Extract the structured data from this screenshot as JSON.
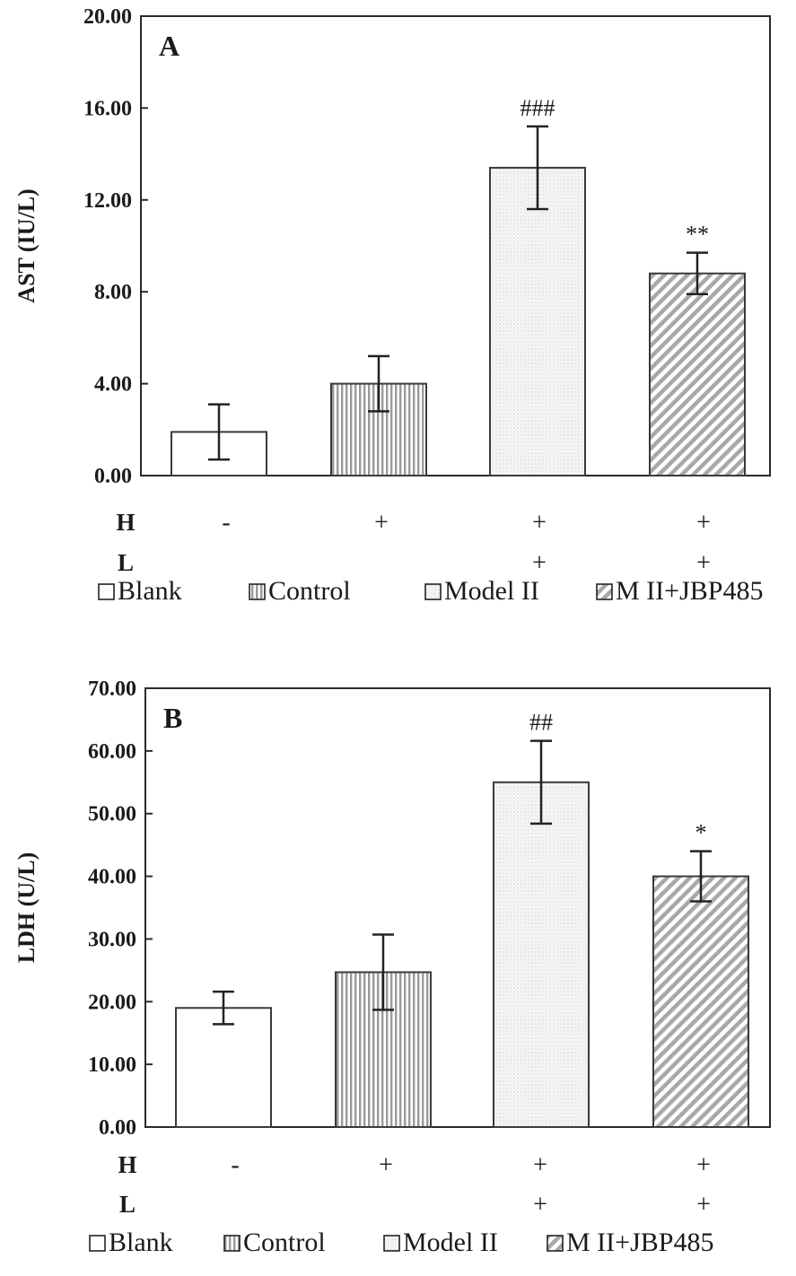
{
  "chart_data": [
    {
      "type": "bar",
      "panel_label": "A",
      "ylabel": "AST (IU/L)",
      "ylim": [
        0,
        20
      ],
      "yticks": [
        "0.00",
        "4.00",
        "8.00",
        "12.00",
        "16.00",
        "20.00"
      ],
      "categories": [
        "Blank",
        "Control",
        "Model II",
        "M II+JBP485"
      ],
      "values": [
        1.9,
        4.0,
        13.4,
        8.8
      ],
      "errors": [
        1.2,
        1.2,
        1.8,
        0.9
      ],
      "significance": [
        "",
        "",
        "###",
        "**"
      ],
      "rows": {
        "H": [
          "-",
          "+",
          "+",
          "+"
        ],
        "L": [
          "",
          "",
          "+",
          "+"
        ]
      },
      "row_labels": [
        "H",
        "L"
      ],
      "legend": [
        {
          "label": "Blank",
          "pattern": "blank"
        },
        {
          "label": "Control",
          "pattern": "vertical"
        },
        {
          "label": "Model II",
          "pattern": "dots"
        },
        {
          "label": "M II+JBP485",
          "pattern": "diagonal"
        }
      ]
    },
    {
      "type": "bar",
      "panel_label": "B",
      "ylabel": "LDH (U/L)",
      "ylim": [
        0,
        70
      ],
      "yticks": [
        "0.00",
        "10.00",
        "20.00",
        "30.00",
        "40.00",
        "50.00",
        "60.00",
        "70.00"
      ],
      "categories": [
        "Blank",
        "Control",
        "Model II",
        "M II+JBP485"
      ],
      "values": [
        19.0,
        24.7,
        55.0,
        40.0
      ],
      "errors": [
        2.6,
        6.0,
        6.6,
        4.0
      ],
      "significance": [
        "",
        "",
        "##",
        "*"
      ],
      "rows": {
        "H": [
          "-",
          "+",
          "+",
          "+"
        ],
        "L": [
          "",
          "",
          "+",
          "+"
        ]
      },
      "row_labels": [
        "H",
        "L"
      ],
      "legend": [
        {
          "label": "Blank",
          "pattern": "blank"
        },
        {
          "label": "Control",
          "pattern": "vertical"
        },
        {
          "label": "Model II",
          "pattern": "dots"
        },
        {
          "label": "M II+JBP485",
          "pattern": "diagonal"
        }
      ]
    }
  ],
  "colors": {
    "axis": "#2a2a2a",
    "bar_stroke": "#3a3a3a",
    "vertical_fill": "#9a9a9a",
    "dots_fill": "#dcdcdc",
    "diagonal_fill": "#a8a8a8"
  }
}
